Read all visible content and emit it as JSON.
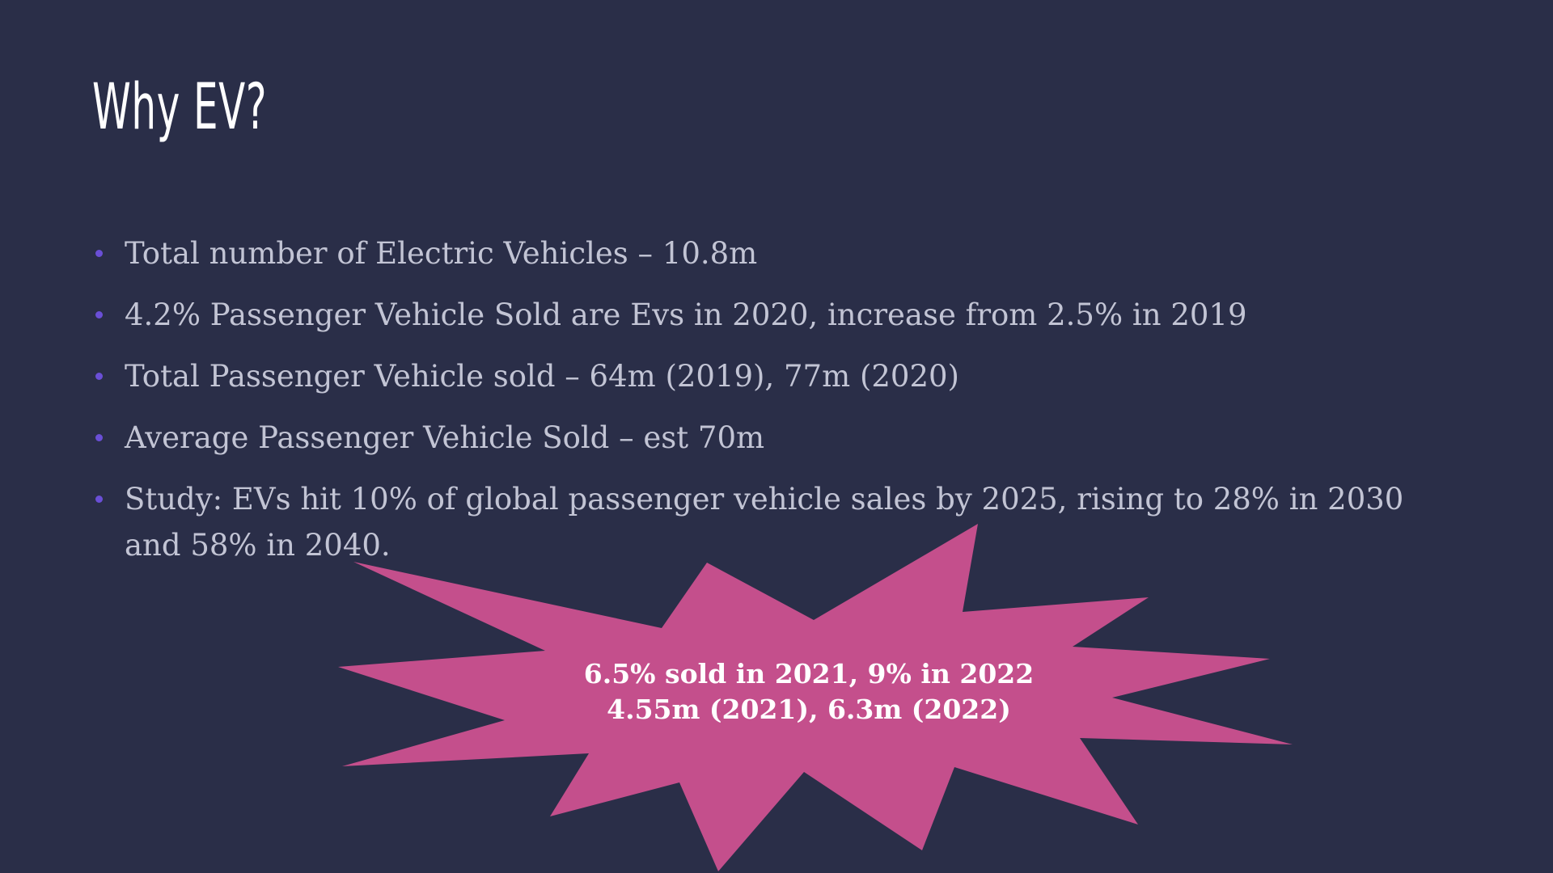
{
  "slide": {
    "title": "Why EV?",
    "bullets": [
      "Total number of Electric Vehicles – 10.8m",
      "4.2% Passenger Vehicle Sold are Evs in 2020, increase from 2.5% in 2019",
      "Total Passenger Vehicle sold – 64m (2019), 77m (2020)",
      "Average Passenger Vehicle Sold – est 70m",
      "Study: EVs hit 10% of global passenger vehicle sales by 2025, rising to 28% in 2030 and 58% in 2040."
    ],
    "callout": {
      "line1": "6.5% sold in 2021, 9% in 2022",
      "line2": "4.55m (2021), 6.3m (2022)",
      "color": "#c44f8c"
    }
  },
  "colors": {
    "background": "#2a2e48",
    "title": "#ffffff",
    "bullet_text": "#c2c4d4",
    "bullet_dot": "#6a4fd6"
  }
}
